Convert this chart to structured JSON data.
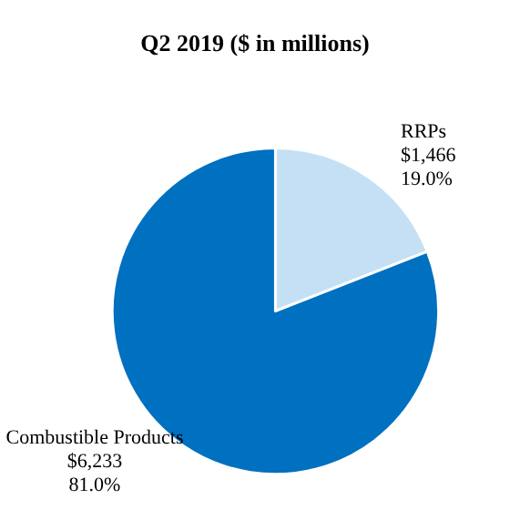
{
  "chart_data": {
    "type": "pie",
    "title": "Q2 2019 ($ in millions)",
    "categories": [
      "RRPs",
      "Combustible Products"
    ],
    "values": [
      1466,
      6233
    ],
    "colors": [
      "#c5e0f5",
      "#0070c0"
    ],
    "value_labels": [
      "$1,466\n19.0%",
      "$6,233\n81.0%"
    ],
    "legend": false
  }
}
